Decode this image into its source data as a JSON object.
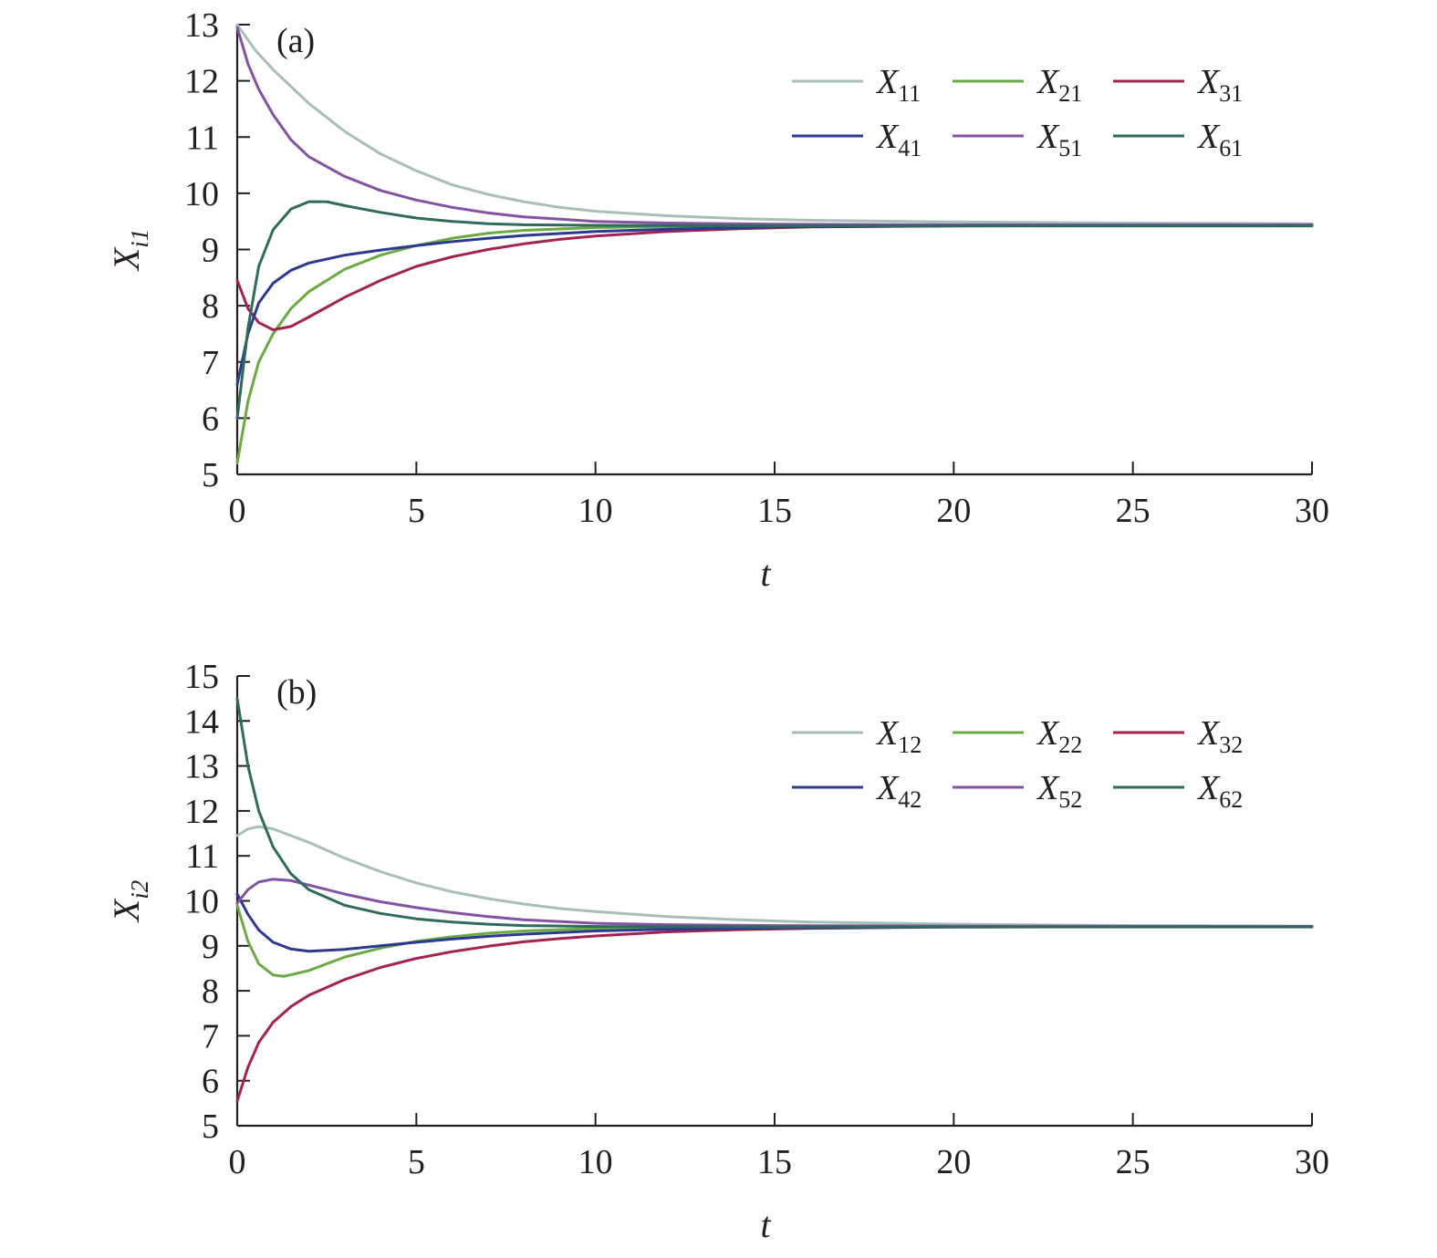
{
  "chart_data": [
    {
      "type": "line",
      "panel_label": "(a)",
      "xlabel": "t",
      "ylabel_base": "X",
      "ylabel_sub": "i1",
      "xlim": [
        0,
        30
      ],
      "ylim": [
        5,
        13
      ],
      "xticks": [
        0,
        5,
        10,
        15,
        20,
        25,
        30
      ],
      "yticks": [
        5,
        6,
        7,
        8,
        9,
        10,
        11,
        12,
        13
      ],
      "legend_position": "top-right",
      "series": [
        {
          "name": "X",
          "sub": "11",
          "color": "#a8bfb9",
          "points": [
            [
              0,
              13.0
            ],
            [
              0.5,
              12.55
            ],
            [
              1,
              12.2
            ],
            [
              2,
              11.6
            ],
            [
              3,
              11.1
            ],
            [
              4,
              10.7
            ],
            [
              5,
              10.4
            ],
            [
              6,
              10.15
            ],
            [
              7,
              9.98
            ],
            [
              8,
              9.85
            ],
            [
              9,
              9.75
            ],
            [
              10,
              9.68
            ],
            [
              12,
              9.6
            ],
            [
              14,
              9.55
            ],
            [
              16,
              9.52
            ],
            [
              20,
              9.49
            ],
            [
              25,
              9.47
            ],
            [
              30,
              9.46
            ]
          ]
        },
        {
          "name": "X",
          "sub": "21",
          "color": "#6aaa43",
          "points": [
            [
              0,
              5.2
            ],
            [
              0.3,
              6.3
            ],
            [
              0.6,
              7.0
            ],
            [
              1,
              7.5
            ],
            [
              1.5,
              7.95
            ],
            [
              2,
              8.25
            ],
            [
              3,
              8.65
            ],
            [
              4,
              8.9
            ],
            [
              5,
              9.07
            ],
            [
              6,
              9.2
            ],
            [
              7,
              9.29
            ],
            [
              8,
              9.34
            ],
            [
              10,
              9.39
            ],
            [
              12,
              9.41
            ],
            [
              15,
              9.42
            ],
            [
              20,
              9.43
            ],
            [
              30,
              9.43
            ]
          ]
        },
        {
          "name": "X",
          "sub": "31",
          "color": "#a32350",
          "points": [
            [
              0,
              8.45
            ],
            [
              0.3,
              7.95
            ],
            [
              0.6,
              7.7
            ],
            [
              1,
              7.57
            ],
            [
              1.5,
              7.63
            ],
            [
              2,
              7.8
            ],
            [
              3,
              8.15
            ],
            [
              4,
              8.45
            ],
            [
              5,
              8.7
            ],
            [
              6,
              8.87
            ],
            [
              7,
              9.0
            ],
            [
              8,
              9.1
            ],
            [
              9,
              9.18
            ],
            [
              10,
              9.24
            ],
            [
              12,
              9.32
            ],
            [
              14,
              9.37
            ],
            [
              16,
              9.4
            ],
            [
              20,
              9.42
            ],
            [
              30,
              9.43
            ]
          ]
        },
        {
          "name": "X",
          "sub": "41",
          "color": "#2b3990",
          "points": [
            [
              0,
              6.6
            ],
            [
              0.3,
              7.5
            ],
            [
              0.6,
              8.05
            ],
            [
              1,
              8.4
            ],
            [
              1.5,
              8.63
            ],
            [
              2,
              8.76
            ],
            [
              3,
              8.9
            ],
            [
              4,
              8.99
            ],
            [
              5,
              9.07
            ],
            [
              6,
              9.14
            ],
            [
              7,
              9.2
            ],
            [
              8,
              9.25
            ],
            [
              10,
              9.32
            ],
            [
              12,
              9.36
            ],
            [
              15,
              9.4
            ],
            [
              20,
              9.42
            ],
            [
              30,
              9.43
            ]
          ]
        },
        {
          "name": "X",
          "sub": "51",
          "color": "#8452a3",
          "points": [
            [
              0,
              12.95
            ],
            [
              0.3,
              12.3
            ],
            [
              0.6,
              11.85
            ],
            [
              1,
              11.4
            ],
            [
              1.5,
              10.95
            ],
            [
              2,
              10.65
            ],
            [
              3,
              10.3
            ],
            [
              4,
              10.05
            ],
            [
              5,
              9.88
            ],
            [
              6,
              9.75
            ],
            [
              7,
              9.65
            ],
            [
              8,
              9.58
            ],
            [
              10,
              9.5
            ],
            [
              12,
              9.47
            ],
            [
              15,
              9.45
            ],
            [
              20,
              9.44
            ],
            [
              30,
              9.44
            ]
          ]
        },
        {
          "name": "X",
          "sub": "61",
          "color": "#2f6a5d",
          "points": [
            [
              0,
              6.0
            ],
            [
              0.3,
              7.6
            ],
            [
              0.6,
              8.7
            ],
            [
              1,
              9.35
            ],
            [
              1.5,
              9.72
            ],
            [
              2,
              9.85
            ],
            [
              2.5,
              9.85
            ],
            [
              3,
              9.78
            ],
            [
              4,
              9.66
            ],
            [
              5,
              9.56
            ],
            [
              6,
              9.5
            ],
            [
              7,
              9.46
            ],
            [
              8,
              9.44
            ],
            [
              10,
              9.43
            ],
            [
              15,
              9.42
            ],
            [
              20,
              9.42
            ],
            [
              30,
              9.42
            ]
          ]
        }
      ]
    },
    {
      "type": "line",
      "panel_label": "(b)",
      "xlabel": "t",
      "ylabel_base": "X",
      "ylabel_sub": "i2",
      "xlim": [
        0,
        30
      ],
      "ylim": [
        5,
        15
      ],
      "xticks": [
        0,
        5,
        10,
        15,
        20,
        25,
        30
      ],
      "yticks": [
        5,
        6,
        7,
        8,
        9,
        10,
        11,
        12,
        13,
        14,
        15
      ],
      "legend_position": "top-right",
      "series": [
        {
          "name": "X",
          "sub": "12",
          "color": "#a8bfb9",
          "points": [
            [
              0,
              11.45
            ],
            [
              0.3,
              11.6
            ],
            [
              0.6,
              11.65
            ],
            [
              1,
              11.6
            ],
            [
              2,
              11.3
            ],
            [
              3,
              10.95
            ],
            [
              4,
              10.65
            ],
            [
              5,
              10.4
            ],
            [
              6,
              10.2
            ],
            [
              7,
              10.05
            ],
            [
              8,
              9.93
            ],
            [
              9,
              9.83
            ],
            [
              10,
              9.76
            ],
            [
              12,
              9.65
            ],
            [
              14,
              9.58
            ],
            [
              16,
              9.53
            ],
            [
              20,
              9.48
            ],
            [
              25,
              9.45
            ],
            [
              30,
              9.44
            ]
          ]
        },
        {
          "name": "X",
          "sub": "22",
          "color": "#6aaa43",
          "points": [
            [
              0,
              9.9
            ],
            [
              0.3,
              9.1
            ],
            [
              0.6,
              8.6
            ],
            [
              1,
              8.35
            ],
            [
              1.3,
              8.32
            ],
            [
              2,
              8.45
            ],
            [
              3,
              8.75
            ],
            [
              4,
              8.95
            ],
            [
              5,
              9.1
            ],
            [
              6,
              9.2
            ],
            [
              7,
              9.28
            ],
            [
              8,
              9.33
            ],
            [
              10,
              9.39
            ],
            [
              12,
              9.41
            ],
            [
              15,
              9.42
            ],
            [
              30,
              9.43
            ]
          ]
        },
        {
          "name": "X",
          "sub": "32",
          "color": "#a32350",
          "points": [
            [
              0,
              5.55
            ],
            [
              0.3,
              6.3
            ],
            [
              0.6,
              6.85
            ],
            [
              1,
              7.3
            ],
            [
              1.5,
              7.65
            ],
            [
              2,
              7.9
            ],
            [
              3,
              8.25
            ],
            [
              4,
              8.52
            ],
            [
              5,
              8.72
            ],
            [
              6,
              8.87
            ],
            [
              7,
              8.99
            ],
            [
              8,
              9.09
            ],
            [
              9,
              9.16
            ],
            [
              10,
              9.22
            ],
            [
              12,
              9.31
            ],
            [
              14,
              9.36
            ],
            [
              16,
              9.39
            ],
            [
              20,
              9.42
            ],
            [
              30,
              9.43
            ]
          ]
        },
        {
          "name": "X",
          "sub": "42",
          "color": "#2b3990",
          "points": [
            [
              0,
              10.15
            ],
            [
              0.3,
              9.7
            ],
            [
              0.6,
              9.35
            ],
            [
              1,
              9.08
            ],
            [
              1.5,
              8.93
            ],
            [
              2,
              8.88
            ],
            [
              3,
              8.92
            ],
            [
              4,
              9.0
            ],
            [
              5,
              9.08
            ],
            [
              6,
              9.15
            ],
            [
              7,
              9.21
            ],
            [
              8,
              9.26
            ],
            [
              10,
              9.33
            ],
            [
              12,
              9.37
            ],
            [
              15,
              9.4
            ],
            [
              20,
              9.42
            ],
            [
              30,
              9.43
            ]
          ]
        },
        {
          "name": "X",
          "sub": "52",
          "color": "#8452a3",
          "points": [
            [
              0,
              9.95
            ],
            [
              0.3,
              10.25
            ],
            [
              0.6,
              10.42
            ],
            [
              1,
              10.48
            ],
            [
              1.5,
              10.45
            ],
            [
              2,
              10.35
            ],
            [
              3,
              10.15
            ],
            [
              4,
              9.98
            ],
            [
              5,
              9.85
            ],
            [
              6,
              9.74
            ],
            [
              7,
              9.65
            ],
            [
              8,
              9.58
            ],
            [
              10,
              9.5
            ],
            [
              12,
              9.47
            ],
            [
              15,
              9.45
            ],
            [
              20,
              9.44
            ],
            [
              30,
              9.43
            ]
          ]
        },
        {
          "name": "X",
          "sub": "62",
          "color": "#2f6a5d",
          "points": [
            [
              0,
              14.5
            ],
            [
              0.3,
              13.0
            ],
            [
              0.6,
              12.0
            ],
            [
              1,
              11.2
            ],
            [
              1.5,
              10.6
            ],
            [
              2,
              10.25
            ],
            [
              3,
              9.9
            ],
            [
              4,
              9.72
            ],
            [
              5,
              9.6
            ],
            [
              6,
              9.53
            ],
            [
              7,
              9.48
            ],
            [
              8,
              9.45
            ],
            [
              10,
              9.43
            ],
            [
              15,
              9.42
            ],
            [
              20,
              9.42
            ],
            [
              30,
              9.42
            ]
          ]
        }
      ]
    }
  ]
}
